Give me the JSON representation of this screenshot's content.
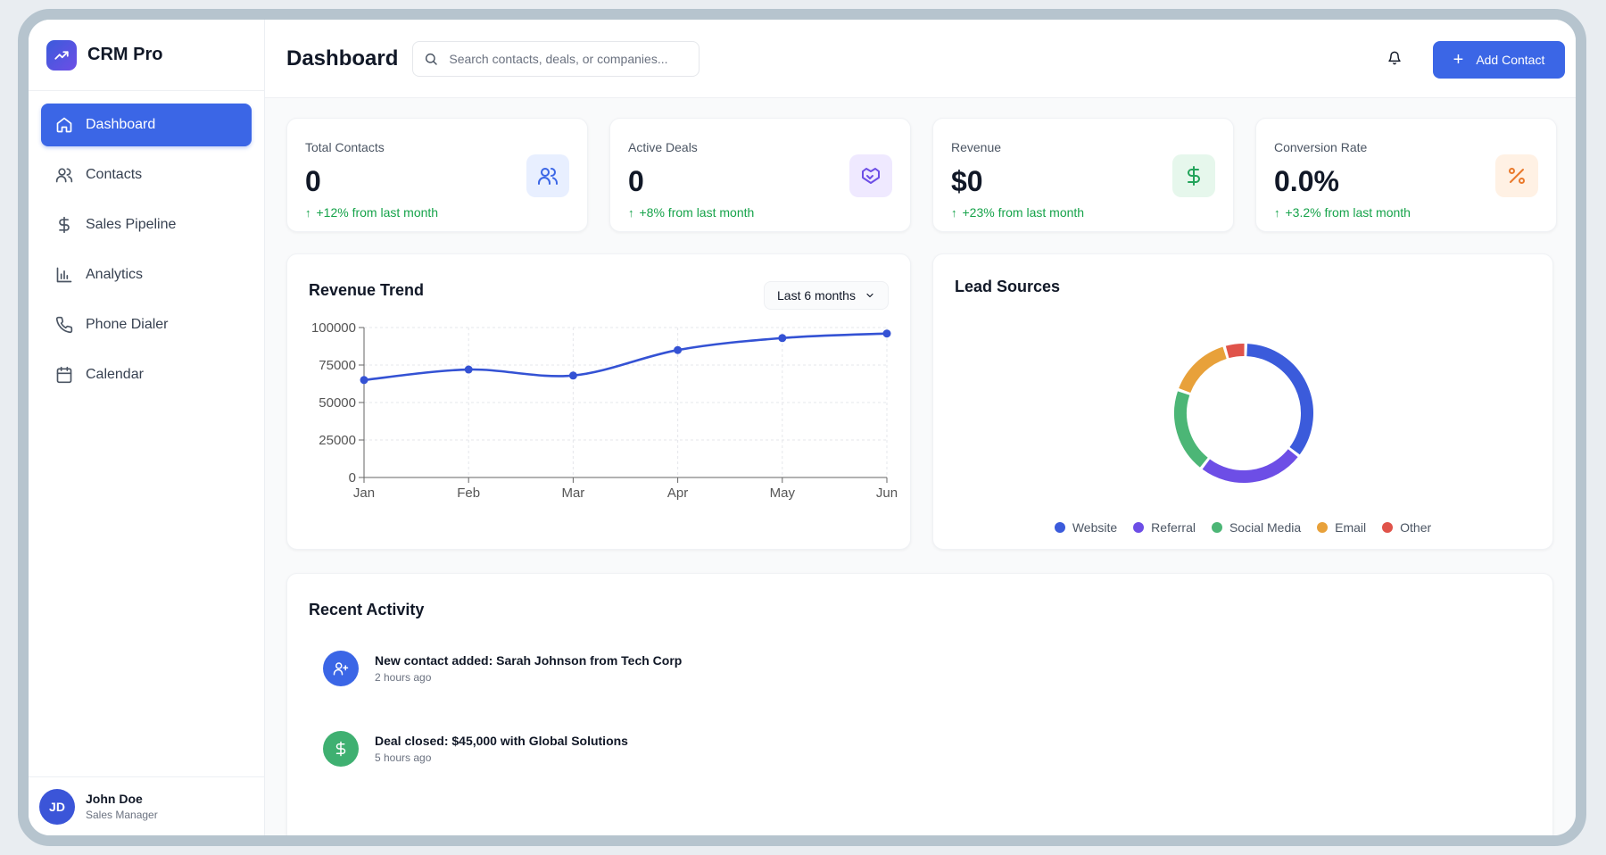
{
  "brand": {
    "name": "CRM Pro"
  },
  "sidebar": {
    "items": [
      {
        "label": "Dashboard",
        "icon": "home-icon",
        "active": true
      },
      {
        "label": "Contacts",
        "icon": "users-icon",
        "active": false
      },
      {
        "label": "Sales Pipeline",
        "icon": "dollar-icon",
        "active": false
      },
      {
        "label": "Analytics",
        "icon": "bar-chart-icon",
        "active": false
      },
      {
        "label": "Phone Dialer",
        "icon": "phone-icon",
        "active": false
      },
      {
        "label": "Calendar",
        "icon": "calendar-icon",
        "active": false
      }
    ]
  },
  "user": {
    "initials": "JD",
    "name": "John Doe",
    "role": "Sales Manager"
  },
  "header": {
    "title": "Dashboard",
    "search_placeholder": "Search contacts, deals, or companies...",
    "add_button": "Add Contact"
  },
  "stats": [
    {
      "label": "Total Contacts",
      "value": "0",
      "change": "+12% from last month",
      "icon": "users-icon",
      "icon_bg": "#e8efff",
      "icon_color": "#3b66e6"
    },
    {
      "label": "Active Deals",
      "value": "0",
      "change": "+8% from last month",
      "icon": "handshake-icon",
      "icon_bg": "#efe9ff",
      "icon_color": "#6d4ee6"
    },
    {
      "label": "Revenue",
      "value": "$0",
      "change": "+23% from last month",
      "icon": "dollar-icon",
      "icon_bg": "#e6f7ec",
      "icon_color": "#22a35a"
    },
    {
      "label": "Conversion Rate",
      "value": "0.0%",
      "change": "+3.2% from last month",
      "icon": "percent-icon",
      "icon_bg": "#fff1e4",
      "icon_color": "#ea7a2c"
    }
  ],
  "revenue_panel": {
    "title": "Revenue Trend",
    "range": "Last 6 months"
  },
  "lead_panel": {
    "title": "Lead Sources"
  },
  "activity": {
    "title": "Recent Activity",
    "items": [
      {
        "text": "New contact added: Sarah Johnson from Tech Corp",
        "time": "2 hours ago",
        "icon": "user-plus-icon",
        "color": "#3b66e6"
      },
      {
        "text": "Deal closed: $45,000 with Global Solutions",
        "time": "5 hours ago",
        "icon": "dollar-icon",
        "color": "#3fb071"
      }
    ]
  },
  "chart_data": [
    {
      "type": "line",
      "title": "Revenue Trend",
      "categories": [
        "Jan",
        "Feb",
        "Mar",
        "Apr",
        "May",
        "Jun"
      ],
      "series": [
        {
          "values": [
            65000,
            72000,
            68000,
            85000,
            93000,
            96000
          ]
        }
      ],
      "yticks": [
        "0",
        "25000",
        "50000",
        "75000",
        "100000"
      ],
      "ylim": [
        0,
        100000
      ],
      "grid": true,
      "color": "#3452d4"
    },
    {
      "type": "pie",
      "title": "Lead Sources",
      "categories": [
        "Website",
        "Referral",
        "Social Media",
        "Email",
        "Other"
      ],
      "values": [
        35,
        25,
        20,
        15,
        5
      ],
      "colors": [
        "#3b5bdb",
        "#6d4ee6",
        "#4cb676",
        "#e8a13a",
        "#e0534a"
      ],
      "legend": "bottom"
    }
  ]
}
